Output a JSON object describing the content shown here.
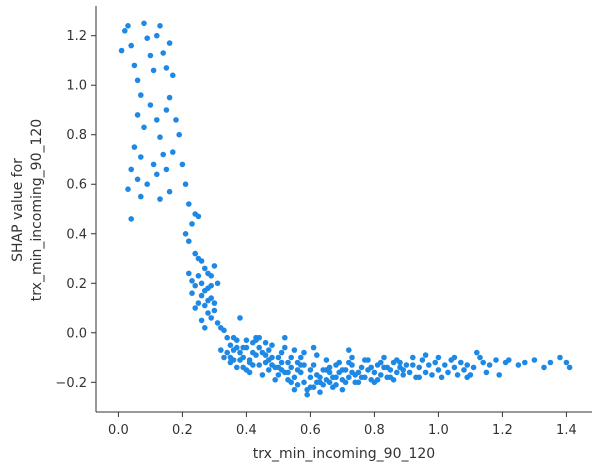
{
  "chart_data": {
    "type": "scatter",
    "title": "",
    "xlabel": "trx_min_incoming_90_120",
    "ylabel_lines": [
      "SHAP value for",
      "trx_min_incoming_90_120"
    ],
    "xlim": [
      -0.07,
      1.48
    ],
    "ylim": [
      -0.32,
      1.32
    ],
    "xticks": [
      0.0,
      0.2,
      0.4,
      0.6,
      0.8,
      1.0,
      1.2,
      1.4
    ],
    "xtick_labels": [
      "0.0",
      "0.2",
      "0.4",
      "0.6",
      "0.8",
      "1.0",
      "1.2",
      "1.4"
    ],
    "yticks": [
      -0.2,
      0.0,
      0.2,
      0.4,
      0.6,
      0.8,
      1.0,
      1.2
    ],
    "ytick_labels": [
      "−0.2",
      "0.0",
      "0.2",
      "0.4",
      "0.6",
      "0.8",
      "1.0",
      "1.2"
    ],
    "grid": false,
    "color": "#1e88e5",
    "series": [
      {
        "points": [
          [
            0.01,
            1.14
          ],
          [
            0.02,
            1.22
          ],
          [
            0.03,
            1.24
          ],
          [
            0.04,
            1.16
          ],
          [
            0.05,
            1.08
          ],
          [
            0.06,
            1.02
          ],
          [
            0.07,
            0.96
          ],
          [
            0.08,
            1.25
          ],
          [
            0.09,
            1.19
          ],
          [
            0.1,
            1.12
          ],
          [
            0.11,
            1.06
          ],
          [
            0.12,
            1.2
          ],
          [
            0.13,
            1.24
          ],
          [
            0.14,
            1.13
          ],
          [
            0.15,
            1.07
          ],
          [
            0.16,
            1.17
          ],
          [
            0.17,
            1.04
          ],
          [
            0.06,
            0.88
          ],
          [
            0.08,
            0.83
          ],
          [
            0.1,
            0.92
          ],
          [
            0.12,
            0.86
          ],
          [
            0.13,
            0.79
          ],
          [
            0.15,
            0.9
          ],
          [
            0.16,
            0.95
          ],
          [
            0.18,
            0.86
          ],
          [
            0.19,
            0.8
          ],
          [
            0.05,
            0.75
          ],
          [
            0.07,
            0.71
          ],
          [
            0.11,
            0.68
          ],
          [
            0.14,
            0.72
          ],
          [
            0.17,
            0.73
          ],
          [
            0.2,
            0.68
          ],
          [
            0.04,
            0.66
          ],
          [
            0.06,
            0.62
          ],
          [
            0.09,
            0.6
          ],
          [
            0.12,
            0.64
          ],
          [
            0.15,
            0.66
          ],
          [
            0.03,
            0.58
          ],
          [
            0.07,
            0.55
          ],
          [
            0.13,
            0.54
          ],
          [
            0.16,
            0.57
          ],
          [
            0.21,
            0.6
          ],
          [
            0.04,
            0.46
          ],
          [
            0.22,
            0.52
          ],
          [
            0.24,
            0.48
          ],
          [
            0.25,
            0.47
          ],
          [
            0.23,
            0.44
          ],
          [
            0.21,
            0.4
          ],
          [
            0.22,
            0.37
          ],
          [
            0.24,
            0.32
          ],
          [
            0.25,
            0.3
          ],
          [
            0.26,
            0.29
          ],
          [
            0.27,
            0.26
          ],
          [
            0.28,
            0.24
          ],
          [
            0.29,
            0.23
          ],
          [
            0.3,
            0.27
          ],
          [
            0.22,
            0.24
          ],
          [
            0.23,
            0.21
          ],
          [
            0.24,
            0.19
          ],
          [
            0.25,
            0.23
          ],
          [
            0.26,
            0.2
          ],
          [
            0.27,
            0.17
          ],
          [
            0.28,
            0.18
          ],
          [
            0.29,
            0.14
          ],
          [
            0.3,
            0.12
          ],
          [
            0.26,
            0.15
          ],
          [
            0.27,
            0.11
          ],
          [
            0.28,
            0.08
          ],
          [
            0.29,
            0.06
          ],
          [
            0.3,
            0.09
          ],
          [
            0.31,
            0.04
          ],
          [
            0.32,
            0.02
          ],
          [
            0.25,
            0.12
          ],
          [
            0.26,
            0.05
          ],
          [
            0.27,
            0.02
          ],
          [
            0.28,
            0.13
          ],
          [
            0.29,
            0.19
          ],
          [
            0.31,
            0.2
          ],
          [
            0.23,
            0.16
          ],
          [
            0.24,
            0.1
          ],
          [
            0.33,
            0.01
          ],
          [
            0.34,
            -0.02
          ],
          [
            0.35,
            -0.05
          ],
          [
            0.36,
            -0.07
          ],
          [
            0.37,
            -0.03
          ],
          [
            0.38,
            -0.08
          ],
          [
            0.39,
            -0.1
          ],
          [
            0.4,
            -0.06
          ],
          [
            0.41,
            -0.11
          ],
          [
            0.42,
            -0.04
          ],
          [
            0.43,
            -0.09
          ],
          [
            0.44,
            -0.13
          ],
          [
            0.45,
            -0.08
          ],
          [
            0.46,
            -0.12
          ],
          [
            0.47,
            -0.15
          ],
          [
            0.48,
            -0.1
          ],
          [
            0.49,
            -0.14
          ],
          [
            0.5,
            -0.17
          ],
          [
            0.51,
            -0.12
          ],
          [
            0.52,
            -0.16
          ],
          [
            0.53,
            -0.19
          ],
          [
            0.54,
            -0.14
          ],
          [
            0.55,
            -0.18
          ],
          [
            0.56,
            -0.21
          ],
          [
            0.57,
            -0.16
          ],
          [
            0.58,
            -0.2
          ],
          [
            0.59,
            -0.23
          ],
          [
            0.6,
            -0.18
          ],
          [
            0.61,
            -0.22
          ],
          [
            0.62,
            -0.17
          ],
          [
            0.63,
            -0.2
          ],
          [
            0.64,
            -0.15
          ],
          [
            0.65,
            -0.19
          ],
          [
            0.66,
            -0.14
          ],
          [
            0.67,
            -0.18
          ],
          [
            0.68,
            -0.21
          ],
          [
            0.69,
            -0.16
          ],
          [
            0.7,
            -0.19
          ],
          [
            0.71,
            -0.15
          ],
          [
            0.72,
            -0.18
          ],
          [
            0.73,
            -0.13
          ],
          [
            0.74,
            -0.17
          ],
          [
            0.75,
            -0.2
          ],
          [
            0.76,
            -0.14
          ],
          [
            0.77,
            -0.18
          ],
          [
            0.78,
            -0.15
          ],
          [
            0.79,
            -0.19
          ],
          [
            0.8,
            -0.16
          ],
          [
            0.81,
            -0.13
          ],
          [
            0.82,
            -0.17
          ],
          [
            0.83,
            -0.14
          ],
          [
            0.84,
            -0.18
          ],
          [
            0.85,
            -0.15
          ],
          [
            0.86,
            -0.12
          ],
          [
            0.87,
            -0.16
          ],
          [
            0.88,
            -0.14
          ],
          [
            0.89,
            -0.17
          ],
          [
            0.9,
            -0.13
          ],
          [
            0.35,
            -0.12
          ],
          [
            0.37,
            -0.14
          ],
          [
            0.39,
            -0.06
          ],
          [
            0.41,
            -0.16
          ],
          [
            0.43,
            -0.03
          ],
          [
            0.45,
            -0.17
          ],
          [
            0.47,
            -0.07
          ],
          [
            0.49,
            -0.19
          ],
          [
            0.51,
            -0.08
          ],
          [
            0.53,
            -0.12
          ],
          [
            0.55,
            -0.23
          ],
          [
            0.57,
            -0.1
          ],
          [
            0.59,
            -0.25
          ],
          [
            0.61,
            -0.13
          ],
          [
            0.63,
            -0.24
          ],
          [
            0.65,
            -0.11
          ],
          [
            0.67,
            -0.22
          ],
          [
            0.69,
            -0.12
          ],
          [
            0.71,
            -0.2
          ],
          [
            0.73,
            -0.1
          ],
          [
            0.75,
            -0.16
          ],
          [
            0.77,
            -0.11
          ],
          [
            0.79,
            -0.14
          ],
          [
            0.81,
            -0.19
          ],
          [
            0.83,
            -0.1
          ],
          [
            0.85,
            -0.18
          ],
          [
            0.87,
            -0.11
          ],
          [
            0.89,
            -0.15
          ],
          [
            0.34,
            -0.08
          ],
          [
            0.36,
            -0.02
          ],
          [
            0.38,
            -0.11
          ],
          [
            0.4,
            -0.15
          ],
          [
            0.42,
            -0.08
          ],
          [
            0.44,
            -0.06
          ],
          [
            0.46,
            -0.04
          ],
          [
            0.48,
            -0.13
          ],
          [
            0.5,
            -0.1
          ],
          [
            0.52,
            -0.06
          ],
          [
            0.54,
            -0.1
          ],
          [
            0.56,
            -0.15
          ],
          [
            0.58,
            -0.13
          ],
          [
            0.6,
            -0.22
          ],
          [
            0.62,
            -0.09
          ],
          [
            0.64,
            -0.21
          ],
          [
            0.66,
            -0.2
          ],
          [
            0.68,
            -0.13
          ],
          [
            0.7,
            -0.23
          ],
          [
            0.72,
            -0.12
          ],
          [
            0.74,
            -0.2
          ],
          [
            0.76,
            -0.18
          ],
          [
            0.78,
            -0.11
          ],
          [
            0.8,
            -0.2
          ],
          [
            0.82,
            -0.12
          ],
          [
            0.84,
            -0.14
          ],
          [
            0.86,
            -0.19
          ],
          [
            0.88,
            -0.12
          ],
          [
            0.32,
            -0.07
          ],
          [
            0.33,
            -0.1
          ],
          [
            0.36,
            -0.11
          ],
          [
            0.39,
            -0.14
          ],
          [
            0.42,
            -0.13
          ],
          [
            0.46,
            -0.09
          ],
          [
            0.5,
            -0.14
          ],
          [
            0.53,
            -0.16
          ],
          [
            0.56,
            -0.12
          ],
          [
            0.6,
            -0.15
          ],
          [
            0.63,
            -0.18
          ],
          [
            0.66,
            -0.16
          ],
          [
            0.7,
            -0.15
          ],
          [
            0.73,
            -0.16
          ],
          [
            0.91,
            -0.16
          ],
          [
            0.92,
            -0.13
          ],
          [
            0.93,
            -0.18
          ],
          [
            0.94,
            -0.14
          ],
          [
            0.95,
            -0.11
          ],
          [
            0.96,
            -0.16
          ],
          [
            0.97,
            -0.13
          ],
          [
            0.98,
            -0.17
          ],
          [
            0.99,
            -0.12
          ],
          [
            1.0,
            -0.15
          ],
          [
            1.01,
            -0.18
          ],
          [
            1.02,
            -0.13
          ],
          [
            1.03,
            -0.16
          ],
          [
            1.04,
            -0.11
          ],
          [
            1.05,
            -0.14
          ],
          [
            1.06,
            -0.17
          ],
          [
            1.07,
            -0.12
          ],
          [
            1.08,
            -0.15
          ],
          [
            1.09,
            -0.13
          ],
          [
            1.1,
            -0.17
          ],
          [
            1.11,
            -0.14
          ],
          [
            1.12,
            -0.08
          ],
          [
            1.14,
            -0.12
          ],
          [
            1.15,
            -0.16
          ],
          [
            1.16,
            -0.13
          ],
          [
            1.18,
            -0.11
          ],
          [
            1.19,
            -0.17
          ],
          [
            1.21,
            -0.12
          ],
          [
            1.22,
            -0.11
          ],
          [
            1.25,
            -0.13
          ],
          [
            1.27,
            -0.12
          ],
          [
            1.3,
            -0.11
          ],
          [
            1.33,
            -0.14
          ],
          [
            1.35,
            -0.12
          ],
          [
            1.38,
            -0.1
          ],
          [
            1.4,
            -0.12
          ],
          [
            1.41,
            -0.14
          ],
          [
            0.92,
            -0.1
          ],
          [
            0.94,
            -0.18
          ],
          [
            0.96,
            -0.09
          ],
          [
            1.0,
            -0.1
          ],
          [
            1.05,
            -0.1
          ],
          [
            1.09,
            -0.18
          ],
          [
            1.13,
            -0.1
          ],
          [
            0.61,
            -0.06
          ],
          [
            0.72,
            -0.07
          ],
          [
            0.4,
            -0.03
          ],
          [
            0.44,
            -0.02
          ],
          [
            0.48,
            -0.05
          ],
          [
            0.52,
            -0.02
          ],
          [
            0.38,
            0.06
          ],
          [
            0.43,
            -0.02
          ],
          [
            0.55,
            -0.07
          ],
          [
            0.58,
            -0.08
          ],
          [
            0.35,
            -0.1
          ],
          [
            0.37,
            -0.06
          ],
          [
            0.41,
            -0.12
          ],
          [
            0.47,
            -0.11
          ],
          [
            0.51,
            -0.15
          ],
          [
            0.54,
            -0.2
          ],
          [
            0.57,
            -0.13
          ],
          [
            0.62,
            -0.2
          ],
          [
            0.65,
            -0.15
          ],
          [
            0.68,
            -0.18
          ]
        ]
      }
    ]
  }
}
